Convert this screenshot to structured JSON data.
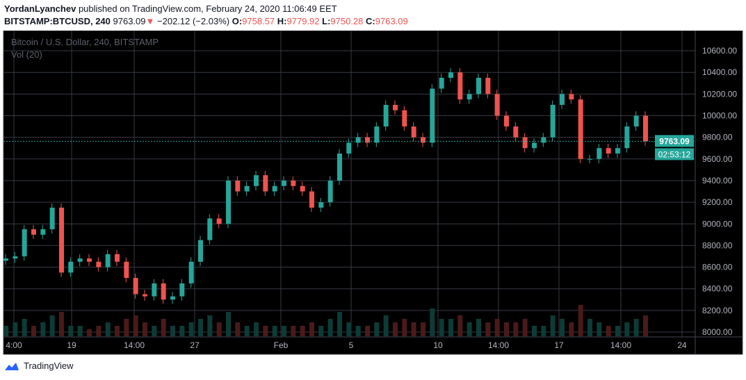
{
  "header": {
    "author": "YordanLyanchev",
    "published": "published on TradingView.com, February 24, 2020 11:06:49 EET",
    "symbol": "BITSTAMP:BTCUSD, 240",
    "last": "9763.09",
    "arrow": "▼",
    "change": "−202.12 (−2.03%)",
    "o_label": "O:",
    "o": "9758.57",
    "h_label": "H:",
    "h": "9779.92",
    "l_label": "L:",
    "l": "9750.28",
    "c_label": "C:",
    "c": "9763.09"
  },
  "legend": {
    "title": "Bitcoin / U.S. Dollar, 240, BITSTAMP",
    "volume": "Vol (20)"
  },
  "price_label": "9763.09",
  "countdown": "02:53:12",
  "footer": {
    "brand": "TradingView"
  },
  "colors": {
    "up": "#26a69a",
    "down": "#ef5350",
    "background": "#000000",
    "grid": "#363a45"
  },
  "chart_data": {
    "type": "candlestick",
    "ylim": [
      8000,
      10700
    ],
    "y_ticks": [
      "8000.00",
      "8200.00",
      "8400.00",
      "8600.00",
      "8800.00",
      "9000.00",
      "9200.00",
      "9400.00",
      "9600.00",
      "9800.00",
      "10000.00",
      "10200.00",
      "10400.00",
      "10600.00"
    ],
    "x_ticks": [
      "4:00",
      "19",
      "14:00",
      "27",
      "Feb",
      "5",
      "10",
      "14:00",
      "17",
      "14:00",
      "24"
    ],
    "grid": true,
    "closes": [
      8680,
      8700,
      8950,
      8900,
      8950,
      9150,
      8550,
      8650,
      8680,
      8650,
      8600,
      8720,
      8650,
      8500,
      8350,
      8330,
      8450,
      8300,
      8330,
      8450,
      8650,
      8850,
      9050,
      9000,
      9400,
      9300,
      9350,
      9450,
      9300,
      9350,
      9400,
      9350,
      9300,
      9150,
      9200,
      9400,
      9650,
      9750,
      9800,
      9750,
      9900,
      10100,
      10050,
      9900,
      9800,
      9750,
      10250,
      10350,
      10400,
      10150,
      10200,
      10350,
      10200,
      10000,
      9900,
      9800,
      9700,
      9750,
      9800,
      10100,
      10200,
      10150,
      9600,
      9600,
      9700,
      9650,
      9700,
      9900,
      10000,
      9763
    ],
    "volumes": [
      3,
      4,
      5,
      3,
      4,
      6,
      7,
      3,
      3,
      2,
      3,
      4,
      3,
      5,
      6,
      4,
      3,
      5,
      3,
      3,
      4,
      5,
      6,
      4,
      7,
      4,
      3,
      4,
      3,
      3,
      3,
      3,
      3,
      4,
      3,
      5,
      7,
      4,
      3,
      3,
      4,
      6,
      4,
      5,
      4,
      4,
      8,
      5,
      5,
      6,
      4,
      5,
      4,
      5,
      4,
      4,
      5,
      3,
      3,
      6,
      5,
      4,
      9,
      5,
      4,
      3,
      3,
      4,
      5,
      6
    ]
  }
}
